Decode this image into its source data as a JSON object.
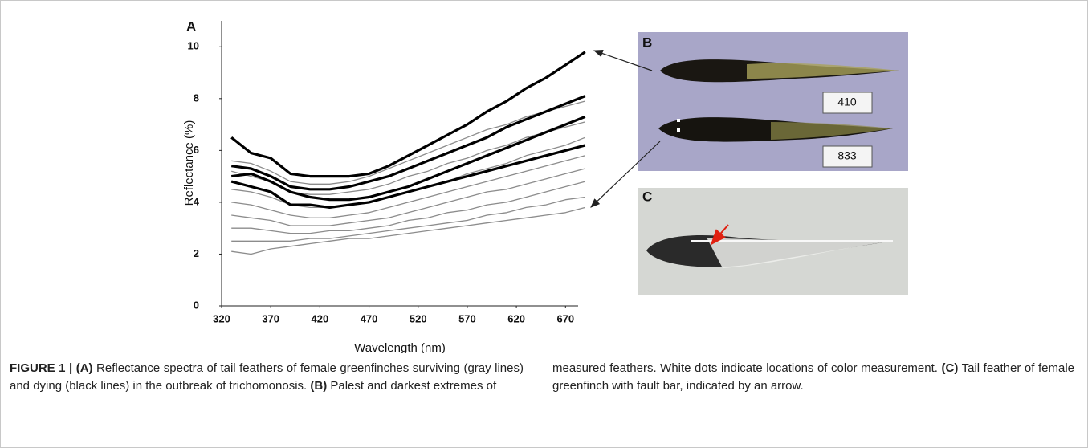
{
  "chart_data": {
    "type": "line",
    "x_label": "Wavelength (nm)",
    "y_label": "Reflectance (%)",
    "x": [
      330,
      350,
      370,
      390,
      410,
      430,
      450,
      470,
      490,
      510,
      530,
      550,
      570,
      590,
      610,
      630,
      650,
      670,
      690
    ],
    "xlim": [
      320,
      700
    ],
    "xticks": [
      320,
      370,
      420,
      470,
      520,
      570,
      620,
      670
    ],
    "ylim": [
      0,
      11
    ],
    "yticks": [
      0,
      2,
      4,
      6,
      8,
      10
    ],
    "series": [
      {
        "color": "#8c8c8c",
        "values": [
          5.6,
          5.5,
          5.2,
          4.8,
          4.7,
          4.7,
          4.8,
          5.0,
          5.3,
          5.6,
          5.9,
          6.2,
          6.5,
          6.8,
          7.0,
          7.3,
          7.5,
          7.7,
          7.9
        ]
      },
      {
        "color": "#8c8c8c",
        "values": [
          5.2,
          5.0,
          4.8,
          4.4,
          4.3,
          4.3,
          4.4,
          4.5,
          4.7,
          5.0,
          5.2,
          5.5,
          5.7,
          6.0,
          6.2,
          6.5,
          6.7,
          6.9,
          7.1
        ]
      },
      {
        "color": "#8c8c8c",
        "values": [
          4.5,
          4.4,
          4.2,
          3.9,
          3.8,
          3.8,
          3.9,
          4.0,
          4.2,
          4.4,
          4.6,
          4.8,
          5.1,
          5.3,
          5.5,
          5.8,
          6.0,
          6.2,
          6.5
        ]
      },
      {
        "color": "#8c8c8c",
        "values": [
          4.0,
          3.9,
          3.7,
          3.5,
          3.4,
          3.4,
          3.5,
          3.6,
          3.8,
          4.0,
          4.2,
          4.4,
          4.6,
          4.8,
          5.0,
          5.2,
          5.4,
          5.6,
          5.8
        ]
      },
      {
        "color": "#8c8c8c",
        "values": [
          3.5,
          3.4,
          3.3,
          3.1,
          3.1,
          3.1,
          3.2,
          3.3,
          3.4,
          3.6,
          3.8,
          4.0,
          4.2,
          4.4,
          4.5,
          4.7,
          4.9,
          5.1,
          5.3
        ]
      },
      {
        "color": "#8c8c8c",
        "values": [
          3.0,
          3.0,
          2.9,
          2.8,
          2.8,
          2.9,
          2.9,
          3.0,
          3.1,
          3.3,
          3.4,
          3.6,
          3.7,
          3.9,
          4.0,
          4.2,
          4.4,
          4.6,
          4.8
        ]
      },
      {
        "color": "#8c8c8c",
        "values": [
          2.5,
          2.5,
          2.5,
          2.5,
          2.6,
          2.6,
          2.7,
          2.8,
          2.9,
          3.0,
          3.1,
          3.2,
          3.3,
          3.5,
          3.6,
          3.8,
          3.9,
          4.1,
          4.2
        ]
      },
      {
        "color": "#8c8c8c",
        "values": [
          2.1,
          2.0,
          2.2,
          2.3,
          2.4,
          2.5,
          2.6,
          2.6,
          2.7,
          2.8,
          2.9,
          3.0,
          3.1,
          3.2,
          3.3,
          3.4,
          3.5,
          3.6,
          3.8
        ]
      },
      {
        "color": "#000000",
        "values": [
          6.5,
          5.9,
          5.7,
          5.1,
          5.0,
          5.0,
          5.0,
          5.1,
          5.4,
          5.8,
          6.2,
          6.6,
          7.0,
          7.5,
          7.9,
          8.4,
          8.8,
          9.3,
          9.8
        ]
      },
      {
        "color": "#000000",
        "values": [
          5.4,
          5.3,
          5.0,
          4.6,
          4.5,
          4.5,
          4.6,
          4.8,
          5.0,
          5.3,
          5.6,
          5.9,
          6.2,
          6.5,
          6.9,
          7.2,
          7.5,
          7.8,
          8.1
        ]
      },
      {
        "color": "#000000",
        "values": [
          5.0,
          5.1,
          4.8,
          4.4,
          4.2,
          4.1,
          4.1,
          4.2,
          4.4,
          4.6,
          4.9,
          5.2,
          5.5,
          5.8,
          6.1,
          6.4,
          6.7,
          7.0,
          7.3
        ]
      },
      {
        "color": "#000000",
        "values": [
          4.8,
          4.6,
          4.4,
          3.9,
          3.9,
          3.8,
          3.9,
          4.0,
          4.2,
          4.4,
          4.6,
          4.8,
          5.0,
          5.2,
          5.4,
          5.6,
          5.8,
          6.0,
          6.2
        ]
      }
    ]
  },
  "panels": {
    "a": "A",
    "b": "B",
    "c": "C"
  },
  "photo_labels": [
    "410",
    "833"
  ],
  "caption": {
    "left": [
      {
        "text": "FIGURE 1 | (A)",
        "bold": true
      },
      {
        "text": " Reflectance spectra of tail feathers of female greenfinches surviving (gray lines) and dying (black lines) in the outbreak of trichomonosis. ",
        "bold": false
      },
      {
        "text": "(B)",
        "bold": true
      },
      {
        "text": " Palest and darkest extremes of",
        "bold": false
      }
    ],
    "right": [
      {
        "text": "measured feathers. White dots indicate locations of color measurement. ",
        "bold": false
      },
      {
        "text": "(C)",
        "bold": true
      },
      {
        "text": " Tail feather of female greenfinch with fault bar, indicated by an arrow.",
        "bold": false
      }
    ]
  }
}
